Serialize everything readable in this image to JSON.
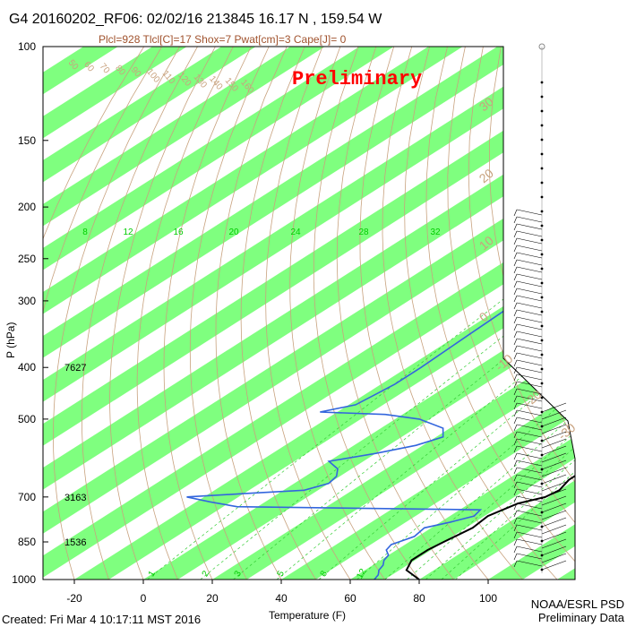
{
  "title": "G4 20160202_RF06: 02/02/16 213845  16.17 N , 159.54 W",
  "subtitle": "Plcl=928 Tlcl[C]=17 Shox=7 Pwat[cm]=3 Cape[J]= 0",
  "banner": "Preliminary",
  "created": "Created: Fri Mar  4 10:17:11 MST 2016",
  "source_line1": "NOAA/ESRL PSD",
  "source_line2": "Preliminary Data",
  "colors": {
    "band": "#7fff7f",
    "temperature": "#000000",
    "dewpoint": "#3366dd",
    "dry_adiabat": "#c8a27e",
    "mixing_ratio": "#33cc33",
    "banner": "#ff0000"
  },
  "chart_data": {
    "type": "line",
    "chart_kind": "skew-T log-P sounding",
    "xlabel": "Temperature (F)",
    "ylabel": "P (hPa)",
    "xlim": [
      -30,
      115
    ],
    "ylim": [
      1000,
      100
    ],
    "y_scale": "log",
    "x_ticks": [
      -20,
      0,
      20,
      40,
      60,
      80,
      100
    ],
    "x_tick_labels": [
      "-20",
      "0",
      "20",
      "40",
      "60",
      "80",
      "100"
    ],
    "y_ticks": [
      100,
      150,
      200,
      250,
      300,
      400,
      500,
      700,
      850,
      1000
    ],
    "y_tick_labels": [
      "100",
      "150",
      "200",
      "250",
      "300",
      "400",
      "500",
      "700",
      "850",
      "1000"
    ],
    "height_labels": [
      {
        "p": 400,
        "text": "7627"
      },
      {
        "p": 700,
        "text": "3163"
      },
      {
        "p": 850,
        "text": "1536"
      }
    ],
    "mixing_ratio_labels": [
      "8",
      "12",
      "16",
      "20",
      "24",
      "28",
      "32"
    ],
    "mixing_ratio_bottom_labels": [
      "1",
      "2",
      "3",
      "5",
      "8",
      "12"
    ],
    "dry_adiabat_labels": [
      "50",
      "60",
      "70",
      "80",
      "90",
      "100",
      "110",
      "120",
      "130",
      "140",
      "150",
      "160"
    ],
    "right_axis_labels": [
      "30",
      "20",
      "10",
      "0",
      "-10",
      "-20",
      "-30"
    ],
    "series": [
      {
        "key": "temperature",
        "points": [
          [
            1000,
            80
          ],
          [
            960,
            72
          ],
          [
            920,
            69
          ],
          [
            880,
            69
          ],
          [
            850,
            70
          ],
          [
            800,
            72
          ],
          [
            760,
            71
          ],
          [
            720,
            74
          ],
          [
            700,
            79
          ],
          [
            680,
            80
          ],
          [
            650,
            78
          ],
          [
            620,
            78
          ],
          [
            600,
            76
          ],
          [
            570,
            71
          ],
          [
            550,
            67
          ],
          [
            520,
            63
          ],
          [
            500,
            63
          ],
          [
            480,
            67
          ],
          [
            460,
            70
          ],
          [
            440,
            71
          ],
          [
            420,
            73
          ],
          [
            400,
            72
          ],
          [
            380,
            71
          ],
          [
            350,
            68
          ],
          [
            320,
            64
          ],
          [
            300,
            62
          ],
          [
            280,
            58
          ],
          [
            260,
            55
          ],
          [
            240,
            52
          ],
          [
            220,
            45
          ],
          [
            200,
            36
          ]
        ]
      },
      {
        "key": "dewpoint",
        "points": [
          [
            1000,
            67
          ],
          [
            980,
            66
          ],
          [
            960,
            64
          ],
          [
            940,
            63
          ],
          [
            920,
            61
          ],
          [
            900,
            60
          ],
          [
            880,
            57
          ],
          [
            860,
            56
          ],
          [
            850,
            57
          ],
          [
            830,
            59
          ],
          [
            800,
            58
          ],
          [
            780,
            63
          ],
          [
            760,
            67
          ],
          [
            740,
            66
          ],
          [
            730,
            -6
          ],
          [
            715,
            -16
          ],
          [
            700,
            -25
          ],
          [
            690,
            -10
          ],
          [
            680,
            6
          ],
          [
            660,
            10
          ],
          [
            640,
            9
          ],
          [
            620,
            6
          ],
          [
            600,
            0
          ],
          [
            580,
            10
          ],
          [
            560,
            18
          ],
          [
            540,
            22
          ],
          [
            520,
            18
          ],
          [
            500,
            7
          ],
          [
            490,
            -5
          ],
          [
            485,
            -25
          ],
          [
            470,
            -18
          ],
          [
            450,
            -17
          ],
          [
            430,
            -16
          ],
          [
            400,
            -16
          ],
          [
            350,
            -17
          ],
          [
            300,
            -18
          ],
          [
            260,
            -21
          ],
          [
            230,
            -25
          ]
        ]
      }
    ],
    "wind_barbs_present": true
  }
}
